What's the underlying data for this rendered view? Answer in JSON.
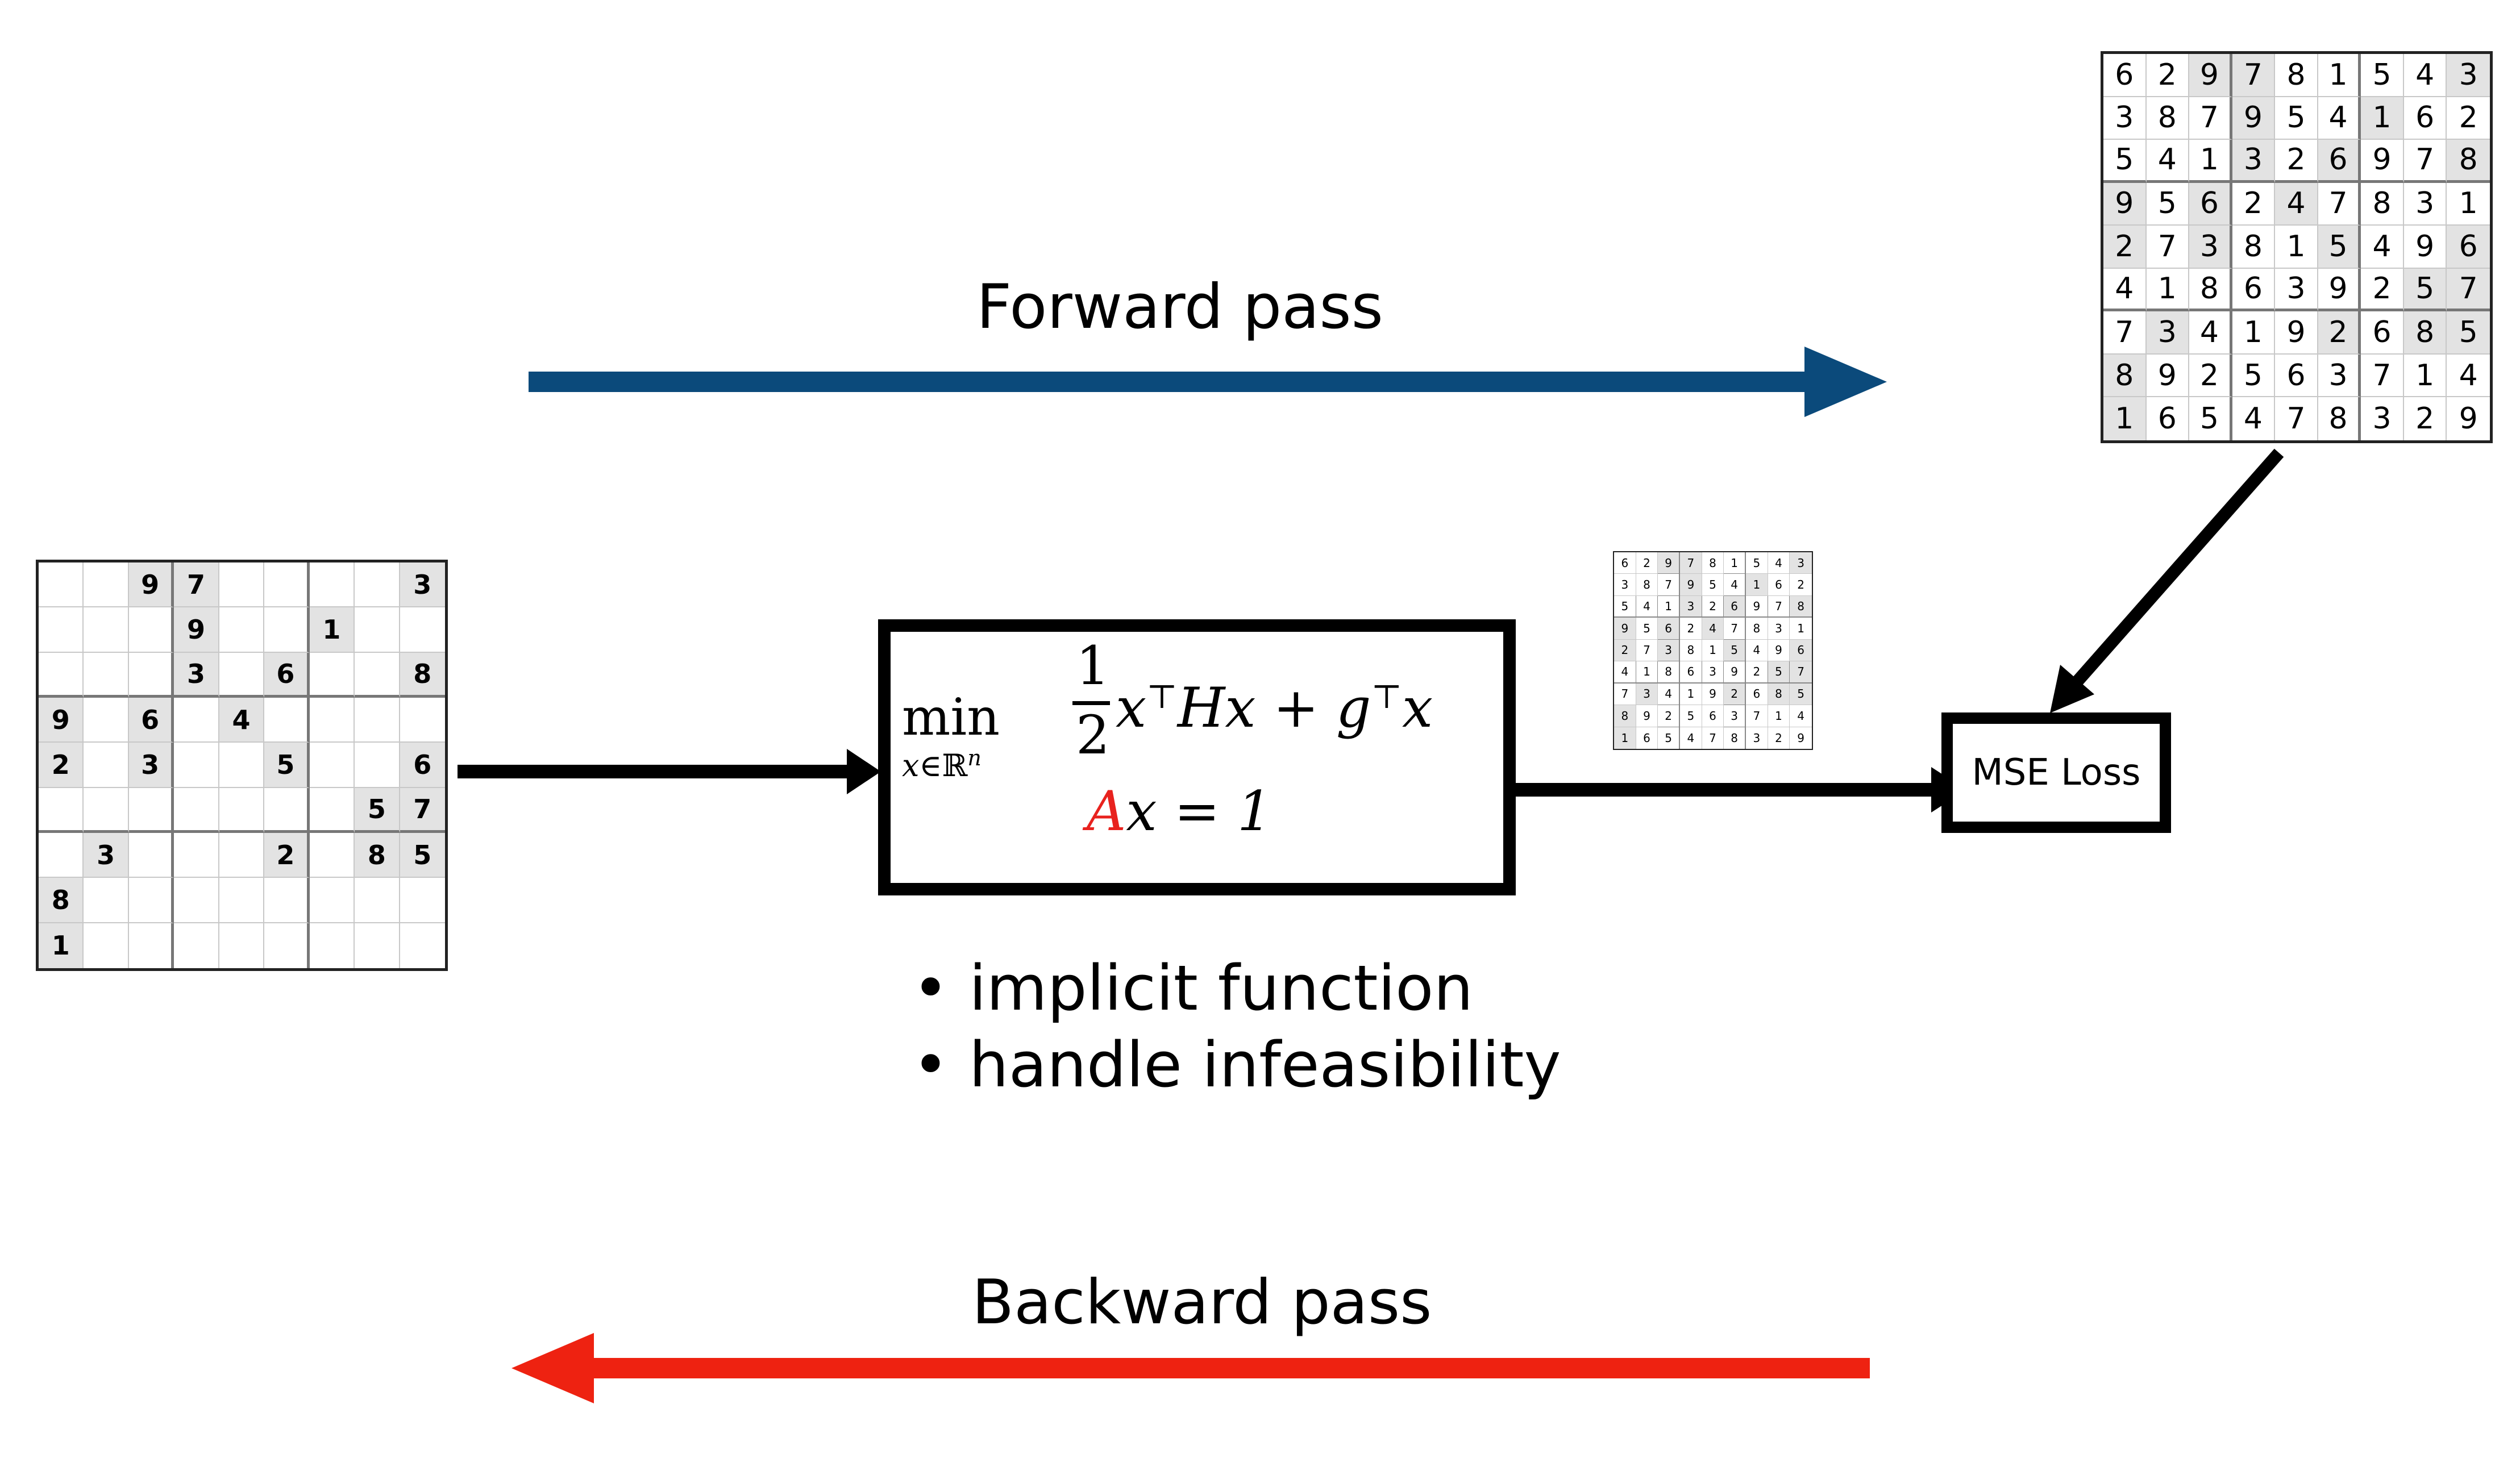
{
  "labels": {
    "forward_pass": "Forward pass",
    "backward_pass": "Backward pass",
    "mse_loss": "MSE Loss"
  },
  "optimization": {
    "operator": "min",
    "subscript_var": "x",
    "subscript_rest": "∈ℝ",
    "subscript_power": "n",
    "frac_num": "1",
    "frac_den": "2",
    "objective_x1": "x",
    "objective_sup1": "⊤",
    "objective_H": "Hx",
    "objective_plus": " + ",
    "objective_g": "g",
    "objective_sup2": "⊤",
    "objective_x2": "x",
    "constraint_A": "A",
    "constraint_rest": "x = 1"
  },
  "bullets": [
    "implicit function",
    "handle infeasibility"
  ],
  "colors": {
    "forward_arrow": "#0b4a7b",
    "backward_arrow": "#ee2211",
    "constraint_highlight": "#e8221e"
  },
  "puzzle_input": [
    [
      "",
      "",
      "9",
      "7",
      "",
      "",
      "",
      "",
      "3"
    ],
    [
      "",
      "",
      "",
      "9",
      "",
      "",
      "1",
      "",
      ""
    ],
    [
      "",
      "",
      "",
      "3",
      "",
      "6",
      "",
      "",
      "8"
    ],
    [
      "9",
      "",
      "6",
      "",
      "4",
      "",
      "",
      "",
      ""
    ],
    [
      "2",
      "",
      "3",
      "",
      "",
      "5",
      "",
      "",
      "6"
    ],
    [
      "",
      "",
      "",
      "",
      "",
      "",
      "",
      "5",
      "7"
    ],
    [
      "",
      "3",
      "",
      "",
      "",
      "2",
      "",
      "8",
      "5"
    ],
    [
      "8",
      "",
      "",
      "",
      "",
      "",
      "",
      "",
      ""
    ],
    [
      "1",
      "",
      "",
      "",
      "",
      "",
      "",
      "",
      ""
    ]
  ],
  "puzzle_solution": [
    [
      "6",
      "2",
      "9",
      "7",
      "8",
      "1",
      "5",
      "4",
      "3"
    ],
    [
      "3",
      "8",
      "7",
      "9",
      "5",
      "4",
      "1",
      "6",
      "2"
    ],
    [
      "5",
      "4",
      "1",
      "3",
      "2",
      "6",
      "9",
      "7",
      "8"
    ],
    [
      "9",
      "5",
      "6",
      "2",
      "4",
      "7",
      "8",
      "3",
      "1"
    ],
    [
      "2",
      "7",
      "3",
      "8",
      "1",
      "5",
      "4",
      "9",
      "6"
    ],
    [
      "4",
      "1",
      "8",
      "6",
      "3",
      "9",
      "2",
      "5",
      "7"
    ],
    [
      "7",
      "3",
      "4",
      "1",
      "9",
      "2",
      "6",
      "8",
      "5"
    ],
    [
      "8",
      "9",
      "2",
      "5",
      "6",
      "3",
      "7",
      "1",
      "4"
    ],
    [
      "1",
      "6",
      "5",
      "4",
      "7",
      "8",
      "3",
      "2",
      "9"
    ]
  ]
}
